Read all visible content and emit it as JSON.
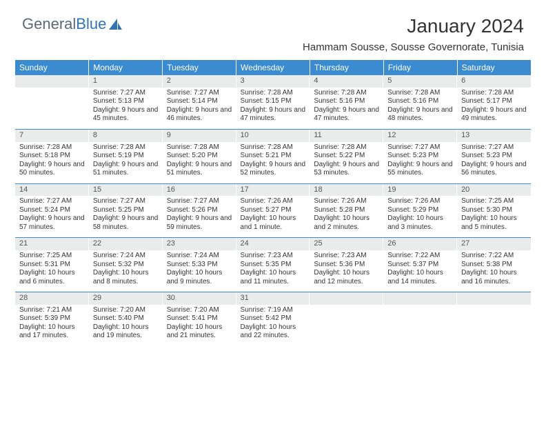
{
  "logo": {
    "text1": "General",
    "text2": "Blue"
  },
  "title": "January 2024",
  "location": "Hammam Sousse, Sousse Governorate, Tunisia",
  "colors": {
    "header_bg": "#3a8bcf",
    "header_fg": "#ffffff",
    "daynum_bg": "#e9eceb",
    "border": "#3a8bcf",
    "logo_gray": "#5a6a78",
    "logo_blue": "#2f73b5"
  },
  "day_headers": [
    "Sunday",
    "Monday",
    "Tuesday",
    "Wednesday",
    "Thursday",
    "Friday",
    "Saturday"
  ],
  "weeks": [
    [
      {
        "empty": true
      },
      {
        "num": "1",
        "sunrise": "7:27 AM",
        "sunset": "5:13 PM",
        "daylight": "9 hours and 45 minutes."
      },
      {
        "num": "2",
        "sunrise": "7:27 AM",
        "sunset": "5:14 PM",
        "daylight": "9 hours and 46 minutes."
      },
      {
        "num": "3",
        "sunrise": "7:28 AM",
        "sunset": "5:15 PM",
        "daylight": "9 hours and 47 minutes."
      },
      {
        "num": "4",
        "sunrise": "7:28 AM",
        "sunset": "5:16 PM",
        "daylight": "9 hours and 47 minutes."
      },
      {
        "num": "5",
        "sunrise": "7:28 AM",
        "sunset": "5:16 PM",
        "daylight": "9 hours and 48 minutes."
      },
      {
        "num": "6",
        "sunrise": "7:28 AM",
        "sunset": "5:17 PM",
        "daylight": "9 hours and 49 minutes."
      }
    ],
    [
      {
        "num": "7",
        "sunrise": "7:28 AM",
        "sunset": "5:18 PM",
        "daylight": "9 hours and 50 minutes."
      },
      {
        "num": "8",
        "sunrise": "7:28 AM",
        "sunset": "5:19 PM",
        "daylight": "9 hours and 51 minutes."
      },
      {
        "num": "9",
        "sunrise": "7:28 AM",
        "sunset": "5:20 PM",
        "daylight": "9 hours and 51 minutes."
      },
      {
        "num": "10",
        "sunrise": "7:28 AM",
        "sunset": "5:21 PM",
        "daylight": "9 hours and 52 minutes."
      },
      {
        "num": "11",
        "sunrise": "7:28 AM",
        "sunset": "5:22 PM",
        "daylight": "9 hours and 53 minutes."
      },
      {
        "num": "12",
        "sunrise": "7:27 AM",
        "sunset": "5:23 PM",
        "daylight": "9 hours and 55 minutes."
      },
      {
        "num": "13",
        "sunrise": "7:27 AM",
        "sunset": "5:23 PM",
        "daylight": "9 hours and 56 minutes."
      }
    ],
    [
      {
        "num": "14",
        "sunrise": "7:27 AM",
        "sunset": "5:24 PM",
        "daylight": "9 hours and 57 minutes."
      },
      {
        "num": "15",
        "sunrise": "7:27 AM",
        "sunset": "5:25 PM",
        "daylight": "9 hours and 58 minutes."
      },
      {
        "num": "16",
        "sunrise": "7:27 AM",
        "sunset": "5:26 PM",
        "daylight": "9 hours and 59 minutes."
      },
      {
        "num": "17",
        "sunrise": "7:26 AM",
        "sunset": "5:27 PM",
        "daylight": "10 hours and 1 minute."
      },
      {
        "num": "18",
        "sunrise": "7:26 AM",
        "sunset": "5:28 PM",
        "daylight": "10 hours and 2 minutes."
      },
      {
        "num": "19",
        "sunrise": "7:26 AM",
        "sunset": "5:29 PM",
        "daylight": "10 hours and 3 minutes."
      },
      {
        "num": "20",
        "sunrise": "7:25 AM",
        "sunset": "5:30 PM",
        "daylight": "10 hours and 5 minutes."
      }
    ],
    [
      {
        "num": "21",
        "sunrise": "7:25 AM",
        "sunset": "5:31 PM",
        "daylight": "10 hours and 6 minutes."
      },
      {
        "num": "22",
        "sunrise": "7:24 AM",
        "sunset": "5:32 PM",
        "daylight": "10 hours and 8 minutes."
      },
      {
        "num": "23",
        "sunrise": "7:24 AM",
        "sunset": "5:33 PM",
        "daylight": "10 hours and 9 minutes."
      },
      {
        "num": "24",
        "sunrise": "7:23 AM",
        "sunset": "5:35 PM",
        "daylight": "10 hours and 11 minutes."
      },
      {
        "num": "25",
        "sunrise": "7:23 AM",
        "sunset": "5:36 PM",
        "daylight": "10 hours and 12 minutes."
      },
      {
        "num": "26",
        "sunrise": "7:22 AM",
        "sunset": "5:37 PM",
        "daylight": "10 hours and 14 minutes."
      },
      {
        "num": "27",
        "sunrise": "7:22 AM",
        "sunset": "5:38 PM",
        "daylight": "10 hours and 16 minutes."
      }
    ],
    [
      {
        "num": "28",
        "sunrise": "7:21 AM",
        "sunset": "5:39 PM",
        "daylight": "10 hours and 17 minutes."
      },
      {
        "num": "29",
        "sunrise": "7:20 AM",
        "sunset": "5:40 PM",
        "daylight": "10 hours and 19 minutes."
      },
      {
        "num": "30",
        "sunrise": "7:20 AM",
        "sunset": "5:41 PM",
        "daylight": "10 hours and 21 minutes."
      },
      {
        "num": "31",
        "sunrise": "7:19 AM",
        "sunset": "5:42 PM",
        "daylight": "10 hours and 22 minutes."
      },
      {
        "empty": true
      },
      {
        "empty": true
      },
      {
        "empty": true
      }
    ]
  ],
  "labels": {
    "sunrise": "Sunrise: ",
    "sunset": "Sunset: ",
    "daylight": "Daylight: "
  }
}
